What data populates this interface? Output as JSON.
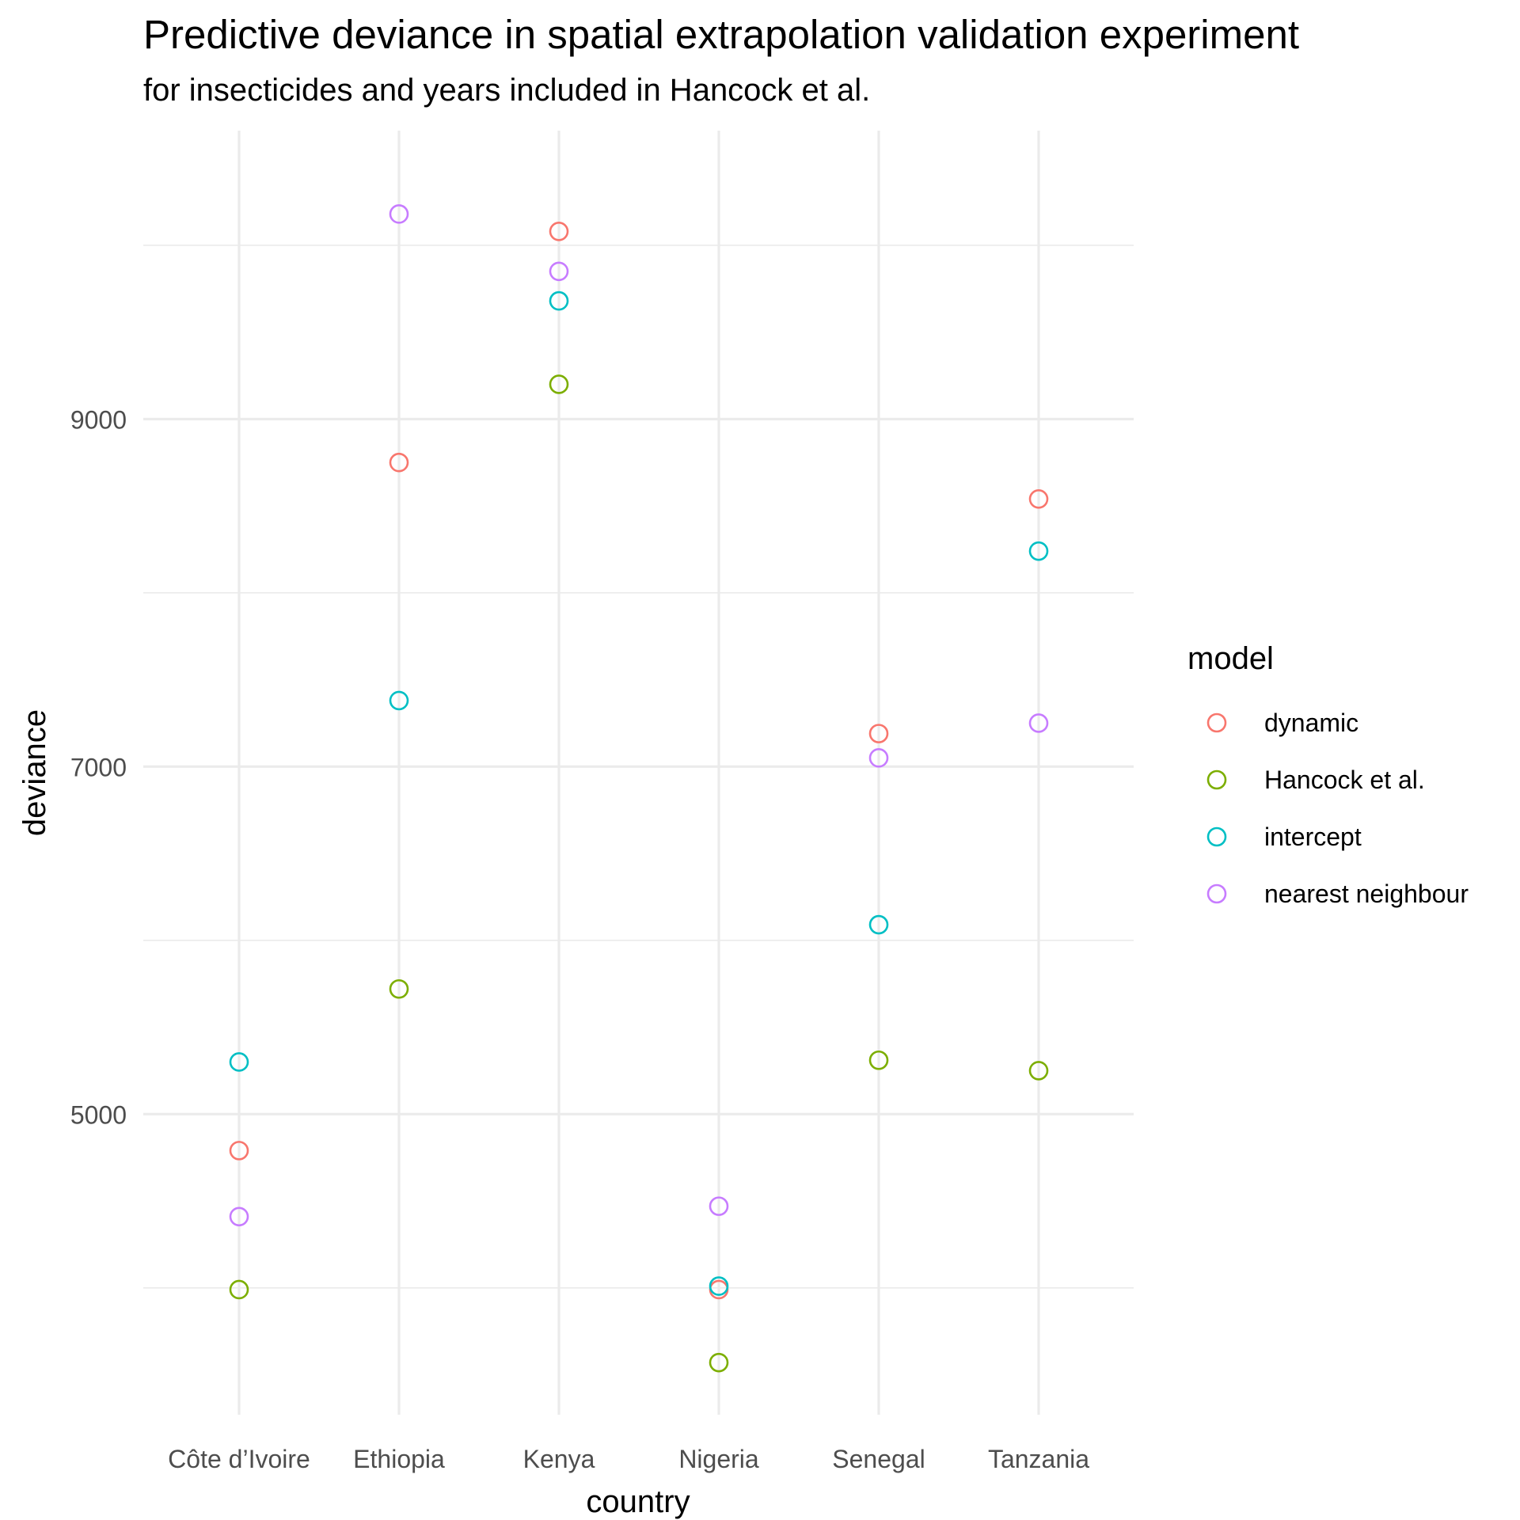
{
  "chart_data": {
    "type": "scatter",
    "title": "Predictive deviance in spatial extrapolation validation experiment",
    "subtitle": "for insecticides and years included in Hancock et al.",
    "xlabel": "country",
    "ylabel": "deviance",
    "categories": [
      "Côte d’Ivoire",
      "Ethiopia",
      "Kenya",
      "Nigeria",
      "Senegal",
      "Tanzania"
    ],
    "ylim": [
      3270,
      10660
    ],
    "yticks": [
      5000,
      7000,
      9000
    ],
    "y_minor_gridlines": [
      4000,
      6000,
      8000,
      10000
    ],
    "grid": true,
    "legend": {
      "title": "model",
      "position": "right"
    },
    "marker": "open-circle",
    "series": [
      {
        "name": "dynamic",
        "color": "#F8766D",
        "values": [
          4790,
          8750,
          10080,
          3990,
          7190,
          8540
        ]
      },
      {
        "name": "Hancock et al.",
        "color": "#7CAE00",
        "values": [
          3990,
          5720,
          9200,
          3570,
          5310,
          5250
        ]
      },
      {
        "name": "intercept",
        "color": "#00BFC4",
        "values": [
          5300,
          7380,
          9680,
          4010,
          6090,
          8240
        ]
      },
      {
        "name": "nearest neighbour",
        "color": "#C77CFF",
        "values": [
          4410,
          10180,
          9850,
          4470,
          7050,
          7250
        ]
      }
    ]
  }
}
